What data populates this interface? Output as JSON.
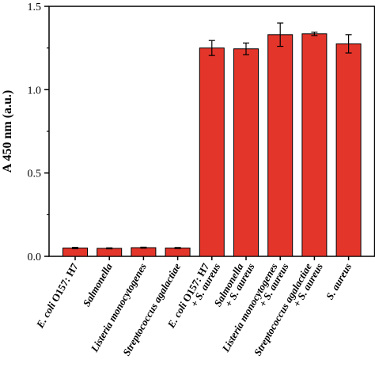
{
  "chart_data": {
    "type": "bar",
    "ylabel": "A 450 nm (a.u.)",
    "ylim": [
      0,
      1.5
    ],
    "yticks": [
      "0.0",
      "0.5",
      "1.0",
      "1.5"
    ],
    "categories": [
      {
        "lines": [
          {
            "parts": [
              {
                "t": "E. coli",
                "i": true
              },
              {
                "t": " O157: H7",
                "i": false
              }
            ]
          }
        ]
      },
      {
        "lines": [
          {
            "parts": [
              {
                "t": "Salmonella",
                "i": true
              }
            ]
          }
        ]
      },
      {
        "lines": [
          {
            "parts": [
              {
                "t": "Listeria monocytogenes",
                "i": true
              }
            ]
          }
        ]
      },
      {
        "lines": [
          {
            "parts": [
              {
                "t": "Streptococcus agalactiae",
                "i": true
              }
            ]
          }
        ]
      },
      {
        "lines": [
          {
            "parts": [
              {
                "t": "E. coli",
                "i": true
              },
              {
                "t": " O157: H7",
                "i": false
              }
            ]
          },
          {
            "parts": [
              {
                "t": "+ ",
                "i": false
              },
              {
                "t": "S. aureus",
                "i": true
              }
            ]
          }
        ]
      },
      {
        "lines": [
          {
            "parts": [
              {
                "t": "Salmonella",
                "i": true
              }
            ]
          },
          {
            "parts": [
              {
                "t": "+ ",
                "i": false
              },
              {
                "t": "S. aureus",
                "i": true
              }
            ]
          }
        ]
      },
      {
        "lines": [
          {
            "parts": [
              {
                "t": "Listeria monocytogenes",
                "i": true
              }
            ]
          },
          {
            "parts": [
              {
                "t": "+ ",
                "i": false
              },
              {
                "t": "S. aureus",
                "i": true
              }
            ]
          }
        ]
      },
      {
        "lines": [
          {
            "parts": [
              {
                "t": "Streptococcus agalactiae",
                "i": true
              }
            ]
          },
          {
            "parts": [
              {
                "t": "+ ",
                "i": false
              },
              {
                "t": "S. aureus",
                "i": true
              }
            ]
          }
        ]
      },
      {
        "lines": [
          {
            "parts": [
              {
                "t": "S. aureus",
                "i": true
              }
            ]
          }
        ]
      }
    ],
    "values": [
      0.05,
      0.048,
      0.052,
      0.05,
      1.25,
      1.245,
      1.33,
      1.335,
      1.275
    ],
    "errors": [
      0.004,
      0.003,
      0.003,
      0.003,
      0.045,
      0.035,
      0.07,
      0.01,
      0.055
    ],
    "bar_color": "#e4352b",
    "grid": false
  }
}
